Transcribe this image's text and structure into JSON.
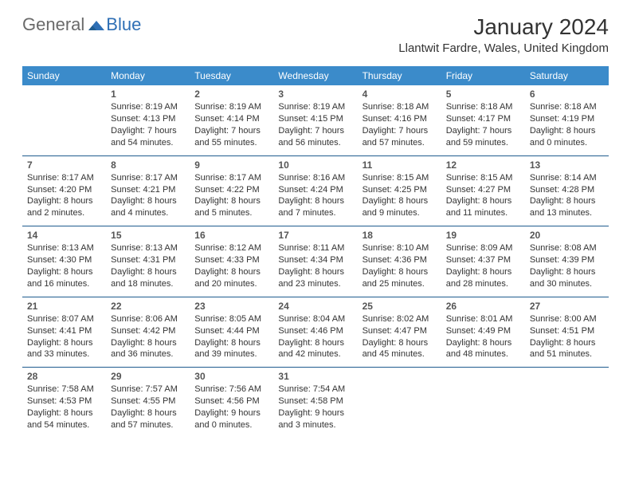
{
  "logo": {
    "part1": "General",
    "part2": "Blue"
  },
  "title": "January 2024",
  "location": "Llantwit Fardre, Wales, United Kingdom",
  "colors": {
    "header_bg": "#3b8bca",
    "header_text": "#ffffff",
    "week_border": "#1f5c8f",
    "text": "#333333",
    "logo_gray": "#6a6a6a",
    "logo_blue": "#2e6fb5"
  },
  "weekdays": [
    "Sunday",
    "Monday",
    "Tuesday",
    "Wednesday",
    "Thursday",
    "Friday",
    "Saturday"
  ],
  "weeks": [
    [
      null,
      {
        "n": "1",
        "sr": "8:19 AM",
        "ss": "4:13 PM",
        "dl": "7 hours and 54 minutes."
      },
      {
        "n": "2",
        "sr": "8:19 AM",
        "ss": "4:14 PM",
        "dl": "7 hours and 55 minutes."
      },
      {
        "n": "3",
        "sr": "8:19 AM",
        "ss": "4:15 PM",
        "dl": "7 hours and 56 minutes."
      },
      {
        "n": "4",
        "sr": "8:18 AM",
        "ss": "4:16 PM",
        "dl": "7 hours and 57 minutes."
      },
      {
        "n": "5",
        "sr": "8:18 AM",
        "ss": "4:17 PM",
        "dl": "7 hours and 59 minutes."
      },
      {
        "n": "6",
        "sr": "8:18 AM",
        "ss": "4:19 PM",
        "dl": "8 hours and 0 minutes."
      }
    ],
    [
      {
        "n": "7",
        "sr": "8:17 AM",
        "ss": "4:20 PM",
        "dl": "8 hours and 2 minutes."
      },
      {
        "n": "8",
        "sr": "8:17 AM",
        "ss": "4:21 PM",
        "dl": "8 hours and 4 minutes."
      },
      {
        "n": "9",
        "sr": "8:17 AM",
        "ss": "4:22 PM",
        "dl": "8 hours and 5 minutes."
      },
      {
        "n": "10",
        "sr": "8:16 AM",
        "ss": "4:24 PM",
        "dl": "8 hours and 7 minutes."
      },
      {
        "n": "11",
        "sr": "8:15 AM",
        "ss": "4:25 PM",
        "dl": "8 hours and 9 minutes."
      },
      {
        "n": "12",
        "sr": "8:15 AM",
        "ss": "4:27 PM",
        "dl": "8 hours and 11 minutes."
      },
      {
        "n": "13",
        "sr": "8:14 AM",
        "ss": "4:28 PM",
        "dl": "8 hours and 13 minutes."
      }
    ],
    [
      {
        "n": "14",
        "sr": "8:13 AM",
        "ss": "4:30 PM",
        "dl": "8 hours and 16 minutes."
      },
      {
        "n": "15",
        "sr": "8:13 AM",
        "ss": "4:31 PM",
        "dl": "8 hours and 18 minutes."
      },
      {
        "n": "16",
        "sr": "8:12 AM",
        "ss": "4:33 PM",
        "dl": "8 hours and 20 minutes."
      },
      {
        "n": "17",
        "sr": "8:11 AM",
        "ss": "4:34 PM",
        "dl": "8 hours and 23 minutes."
      },
      {
        "n": "18",
        "sr": "8:10 AM",
        "ss": "4:36 PM",
        "dl": "8 hours and 25 minutes."
      },
      {
        "n": "19",
        "sr": "8:09 AM",
        "ss": "4:37 PM",
        "dl": "8 hours and 28 minutes."
      },
      {
        "n": "20",
        "sr": "8:08 AM",
        "ss": "4:39 PM",
        "dl": "8 hours and 30 minutes."
      }
    ],
    [
      {
        "n": "21",
        "sr": "8:07 AM",
        "ss": "4:41 PM",
        "dl": "8 hours and 33 minutes."
      },
      {
        "n": "22",
        "sr": "8:06 AM",
        "ss": "4:42 PM",
        "dl": "8 hours and 36 minutes."
      },
      {
        "n": "23",
        "sr": "8:05 AM",
        "ss": "4:44 PM",
        "dl": "8 hours and 39 minutes."
      },
      {
        "n": "24",
        "sr": "8:04 AM",
        "ss": "4:46 PM",
        "dl": "8 hours and 42 minutes."
      },
      {
        "n": "25",
        "sr": "8:02 AM",
        "ss": "4:47 PM",
        "dl": "8 hours and 45 minutes."
      },
      {
        "n": "26",
        "sr": "8:01 AM",
        "ss": "4:49 PM",
        "dl": "8 hours and 48 minutes."
      },
      {
        "n": "27",
        "sr": "8:00 AM",
        "ss": "4:51 PM",
        "dl": "8 hours and 51 minutes."
      }
    ],
    [
      {
        "n": "28",
        "sr": "7:58 AM",
        "ss": "4:53 PM",
        "dl": "8 hours and 54 minutes."
      },
      {
        "n": "29",
        "sr": "7:57 AM",
        "ss": "4:55 PM",
        "dl": "8 hours and 57 minutes."
      },
      {
        "n": "30",
        "sr": "7:56 AM",
        "ss": "4:56 PM",
        "dl": "9 hours and 0 minutes."
      },
      {
        "n": "31",
        "sr": "7:54 AM",
        "ss": "4:58 PM",
        "dl": "9 hours and 3 minutes."
      },
      null,
      null,
      null
    ]
  ],
  "labels": {
    "sunrise": "Sunrise:",
    "sunset": "Sunset:",
    "daylight": "Daylight:"
  }
}
